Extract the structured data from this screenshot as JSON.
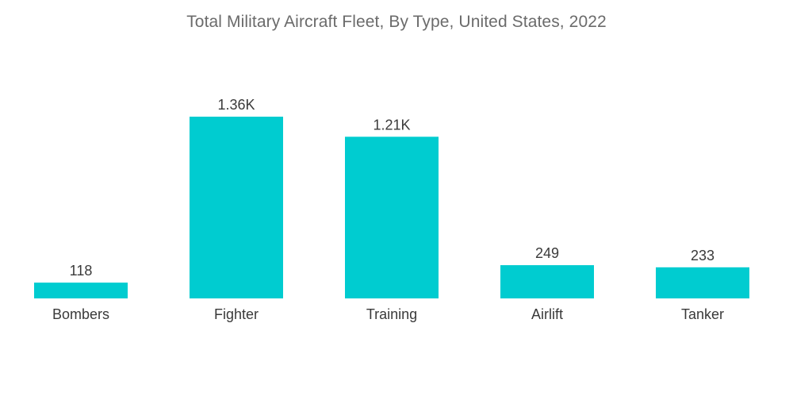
{
  "chart_data": {
    "type": "bar",
    "title": "Total Military Aircraft Fleet, By Type, United States, 2022",
    "categories": [
      "Bombers",
      "Fighter",
      "Training",
      "Airlift",
      "Tanker"
    ],
    "values": [
      118,
      1360,
      1210,
      249,
      233
    ],
    "data_labels": [
      "118",
      "1.36K",
      "1.21K",
      "249",
      "233"
    ],
    "xlabel": "",
    "ylabel": "",
    "ylim": [
      0,
      1360
    ],
    "grid": false,
    "legend": "none",
    "bar_color": "#00ccd0"
  }
}
